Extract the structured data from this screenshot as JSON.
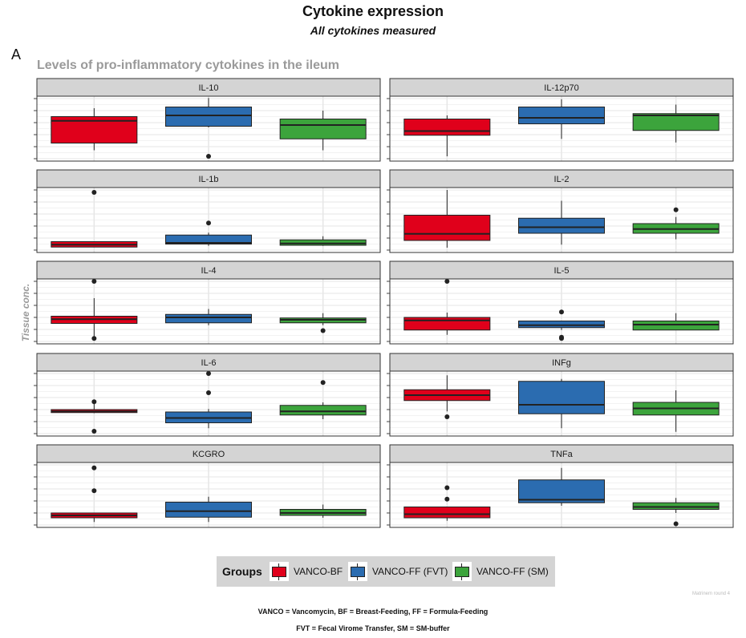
{
  "title": "Cytokine expression",
  "subtitle": "All cytokines measured",
  "panel_letter": "A",
  "section_title": "Levels of pro-inflammatory cytokines in the ileum",
  "y_axis_label": "Tissue conc.",
  "legend": {
    "title": "Groups",
    "entries": [
      {
        "label": "VANCO-BF",
        "color": "#E0001B"
      },
      {
        "label": "VANCO-FF (FVT)",
        "color": "#2B6CB0"
      },
      {
        "label": "VANCO-FF (SM)",
        "color": "#3CA43C"
      }
    ]
  },
  "caption": "Matrinem round 4",
  "footnotes": [
    "VANCO = Vancomycin, BF = Breast-Feeding, FF = Formula-Feeding",
    "FVT = Fecal Virome Transfer, SM = SM-buffer"
  ],
  "chart_data": {
    "type": "boxplot",
    "facet_layout": {
      "columns": 2,
      "rows": 5
    },
    "groups": [
      "VANCO-BF",
      "VANCO-FF (FVT)",
      "VANCO-FF (SM)"
    ],
    "x_tick_labels": "none",
    "y_tick_labels": "none",
    "grid": true,
    "legend_position": "bottom",
    "note": "values in relative units (0 = bottom of panel, 1 = top); no axis tick labels printed",
    "panels": [
      {
        "name": "IL-10",
        "ylim": [
          0,
          1
        ],
        "boxes": [
          {
            "group": "VANCO-BF",
            "whisker_low": 0.14,
            "q1": 0.26,
            "median": 0.63,
            "q3": 0.7,
            "whisker_high": 0.84,
            "outliers": []
          },
          {
            "group": "VANCO-FF (FVT)",
            "whisker_low": 0.52,
            "q1": 0.54,
            "median": 0.72,
            "q3": 0.86,
            "whisker_high": 1.01,
            "outliers": [
              0.04
            ]
          },
          {
            "group": "VANCO-FF (SM)",
            "whisker_low": 0.14,
            "q1": 0.33,
            "median": 0.56,
            "q3": 0.66,
            "whisker_high": 0.8,
            "outliers": []
          }
        ]
      },
      {
        "name": "IL-12p70",
        "ylim": [
          0,
          1
        ],
        "boxes": [
          {
            "group": "VANCO-BF",
            "whisker_low": 0.04,
            "q1": 0.39,
            "median": 0.46,
            "q3": 0.66,
            "whisker_high": 0.72,
            "outliers": []
          },
          {
            "group": "VANCO-FF (FVT)",
            "whisker_low": 0.33,
            "q1": 0.58,
            "median": 0.68,
            "q3": 0.86,
            "whisker_high": 0.99,
            "outliers": []
          },
          {
            "group": "VANCO-FF (SM)",
            "whisker_low": 0.27,
            "q1": 0.47,
            "median": 0.72,
            "q3": 0.75,
            "whisker_high": 0.9,
            "outliers": []
          }
        ]
      },
      {
        "name": "IL-1b",
        "ylim": [
          0,
          1
        ],
        "boxes": [
          {
            "group": "VANCO-BF",
            "whisker_low": 0.05,
            "q1": 0.05,
            "median": 0.09,
            "q3": 0.14,
            "whisker_high": 0.14,
            "outliers": [
              0.96
            ]
          },
          {
            "group": "VANCO-FF (FVT)",
            "whisker_low": 0.07,
            "q1": 0.1,
            "median": 0.12,
            "q3": 0.25,
            "whisker_high": 0.29,
            "outliers": [
              0.45
            ]
          },
          {
            "group": "VANCO-FF (SM)",
            "whisker_low": 0.07,
            "q1": 0.08,
            "median": 0.11,
            "q3": 0.17,
            "whisker_high": 0.23,
            "outliers": []
          }
        ]
      },
      {
        "name": "IL-2",
        "ylim": [
          0,
          1
        ],
        "boxes": [
          {
            "group": "VANCO-BF",
            "whisker_low": 0.04,
            "q1": 0.16,
            "median": 0.27,
            "q3": 0.58,
            "whisker_high": 1.0,
            "outliers": []
          },
          {
            "group": "VANCO-FF (FVT)",
            "whisker_low": 0.09,
            "q1": 0.28,
            "median": 0.38,
            "q3": 0.53,
            "whisker_high": 0.82,
            "outliers": []
          },
          {
            "group": "VANCO-FF (SM)",
            "whisker_low": 0.18,
            "q1": 0.28,
            "median": 0.35,
            "q3": 0.44,
            "whisker_high": 0.55,
            "outliers": [
              0.67
            ]
          }
        ]
      },
      {
        "name": "IL-4",
        "ylim": [
          0,
          1
        ],
        "boxes": [
          {
            "group": "VANCO-BF",
            "whisker_low": 0.05,
            "q1": 0.3,
            "median": 0.37,
            "q3": 0.42,
            "whisker_high": 0.72,
            "outliers": [
              1.0,
              0.05
            ]
          },
          {
            "group": "VANCO-FF (FVT)",
            "whisker_low": 0.27,
            "q1": 0.31,
            "median": 0.4,
            "q3": 0.45,
            "whisker_high": 0.54,
            "outliers": []
          },
          {
            "group": "VANCO-FF (SM)",
            "whisker_low": 0.27,
            "q1": 0.31,
            "median": 0.36,
            "q3": 0.39,
            "whisker_high": 0.47,
            "outliers": [
              0.18
            ]
          }
        ]
      },
      {
        "name": "IL-5",
        "ylim": [
          0,
          1
        ],
        "boxes": [
          {
            "group": "VANCO-BF",
            "whisker_low": 0.11,
            "q1": 0.19,
            "median": 0.35,
            "q3": 0.4,
            "whisker_high": 0.48,
            "outliers": [
              1.0
            ]
          },
          {
            "group": "VANCO-FF (FVT)",
            "whisker_low": 0.19,
            "q1": 0.23,
            "median": 0.27,
            "q3": 0.34,
            "whisker_high": 0.34,
            "outliers": [
              0.49,
              0.07,
              0.05
            ]
          },
          {
            "group": "VANCO-FF (SM)",
            "whisker_low": 0.19,
            "q1": 0.19,
            "median": 0.28,
            "q3": 0.34,
            "whisker_high": 0.47,
            "outliers": []
          }
        ]
      },
      {
        "name": "IL-6",
        "ylim": [
          0,
          1
        ],
        "boxes": [
          {
            "group": "VANCO-BF",
            "whisker_low": 0.34,
            "q1": 0.35,
            "median": 0.37,
            "q3": 0.4,
            "whisker_high": 0.53,
            "outliers": [
              0.53,
              0.04
            ]
          },
          {
            "group": "VANCO-FF (FVT)",
            "whisker_low": 0.09,
            "q1": 0.18,
            "median": 0.26,
            "q3": 0.36,
            "whisker_high": 0.41,
            "outliers": [
              1.0,
              0.68
            ]
          },
          {
            "group": "VANCO-FF (SM)",
            "whisker_low": 0.24,
            "q1": 0.31,
            "median": 0.37,
            "q3": 0.47,
            "whisker_high": 0.52,
            "outliers": [
              0.85
            ]
          }
        ]
      },
      {
        "name": "INFg",
        "ylim": [
          0,
          1
        ],
        "boxes": [
          {
            "group": "VANCO-BF",
            "whisker_low": 0.37,
            "q1": 0.55,
            "median": 0.64,
            "q3": 0.73,
            "whisker_high": 0.97,
            "outliers": [
              0.28
            ]
          },
          {
            "group": "VANCO-FF (FVT)",
            "whisker_low": 0.09,
            "q1": 0.33,
            "median": 0.48,
            "q3": 0.87,
            "whisker_high": 0.91,
            "outliers": []
          },
          {
            "group": "VANCO-FF (SM)",
            "whisker_low": 0.03,
            "q1": 0.31,
            "median": 0.42,
            "q3": 0.52,
            "whisker_high": 0.72,
            "outliers": []
          }
        ]
      },
      {
        "name": "KCGRO",
        "ylim": [
          0,
          1
        ],
        "boxes": [
          {
            "group": "VANCO-BF",
            "whisker_low": 0.05,
            "q1": 0.12,
            "median": 0.16,
            "q3": 0.2,
            "whisker_high": 0.2,
            "outliers": [
              0.95,
              0.57
            ]
          },
          {
            "group": "VANCO-FF (FVT)",
            "whisker_low": 0.05,
            "q1": 0.13,
            "median": 0.23,
            "q3": 0.38,
            "whisker_high": 0.47,
            "outliers": []
          },
          {
            "group": "VANCO-FF (SM)",
            "whisker_low": 0.12,
            "q1": 0.16,
            "median": 0.2,
            "q3": 0.26,
            "whisker_high": 0.34,
            "outliers": []
          }
        ]
      },
      {
        "name": "TNFa",
        "ylim": [
          0,
          1
        ],
        "boxes": [
          {
            "group": "VANCO-BF",
            "whisker_low": 0.07,
            "q1": 0.12,
            "median": 0.18,
            "q3": 0.3,
            "whisker_high": 0.3,
            "outliers": [
              0.62,
              0.43
            ]
          },
          {
            "group": "VANCO-FF (FVT)",
            "whisker_low": 0.32,
            "q1": 0.37,
            "median": 0.42,
            "q3": 0.75,
            "whisker_high": 0.95,
            "outliers": []
          },
          {
            "group": "VANCO-FF (SM)",
            "whisker_low": 0.2,
            "q1": 0.26,
            "median": 0.3,
            "q3": 0.37,
            "whisker_high": 0.45,
            "outliers": [
              0.02
            ]
          }
        ]
      }
    ]
  }
}
